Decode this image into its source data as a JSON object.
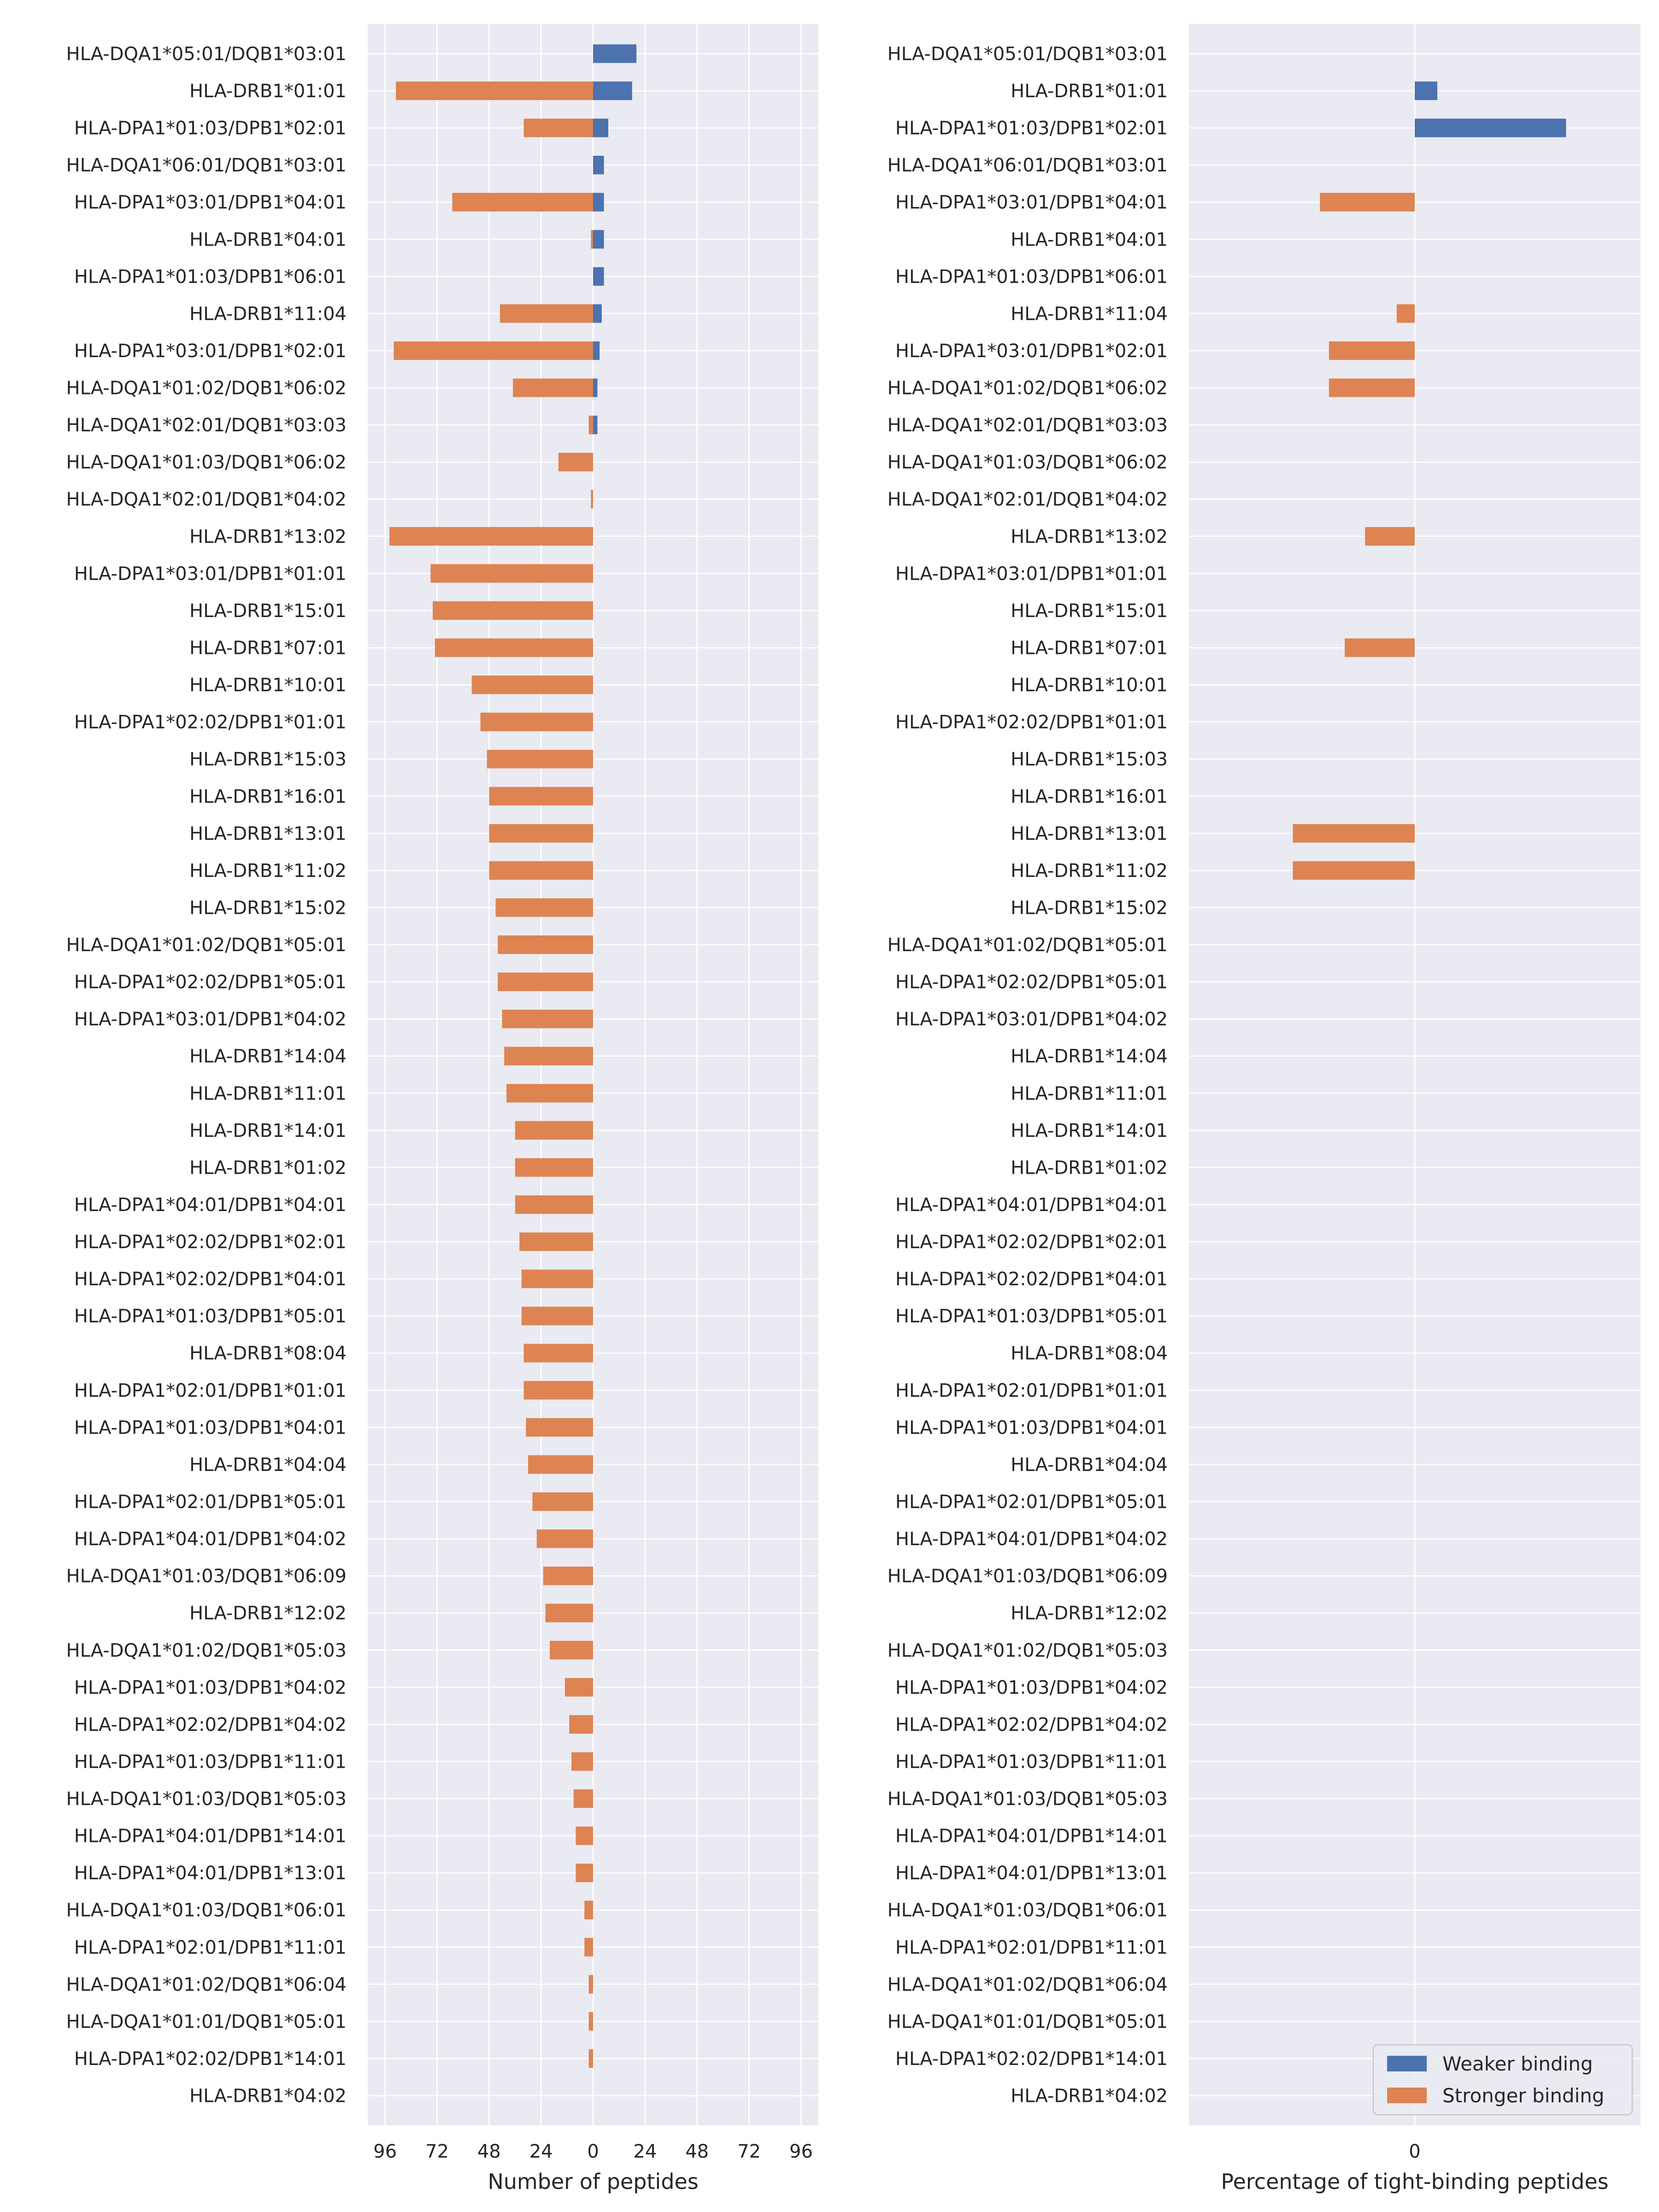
{
  "chart_data": [
    {
      "type": "bar",
      "orientation": "horizontal",
      "layout": "diverging",
      "xlabel": "Number of peptides",
      "ylabel": "",
      "xticks": [
        "96",
        "72",
        "48",
        "24",
        "0",
        "24",
        "48",
        "72",
        "96"
      ],
      "xlim": [
        -104,
        104
      ],
      "grid": true,
      "categories": [
        "HLA-DQA1*05:01/DQB1*03:01",
        "HLA-DRB1*01:01",
        "HLA-DPA1*01:03/DPB1*02:01",
        "HLA-DQA1*06:01/DQB1*03:01",
        "HLA-DPA1*03:01/DPB1*04:01",
        "HLA-DRB1*04:01",
        "HLA-DPA1*01:03/DPB1*06:01",
        "HLA-DRB1*11:04",
        "HLA-DPA1*03:01/DPB1*02:01",
        "HLA-DQA1*01:02/DQB1*06:02",
        "HLA-DQA1*02:01/DQB1*03:03",
        "HLA-DQA1*01:03/DQB1*06:02",
        "HLA-DQA1*02:01/DQB1*04:02",
        "HLA-DRB1*13:02",
        "HLA-DPA1*03:01/DPB1*01:01",
        "HLA-DRB1*15:01",
        "HLA-DRB1*07:01",
        "HLA-DRB1*10:01",
        "HLA-DPA1*02:02/DPB1*01:01",
        "HLA-DRB1*15:03",
        "HLA-DRB1*16:01",
        "HLA-DRB1*13:01",
        "HLA-DRB1*11:02",
        "HLA-DRB1*15:02",
        "HLA-DQA1*01:02/DQB1*05:01",
        "HLA-DPA1*02:02/DPB1*05:01",
        "HLA-DPA1*03:01/DPB1*04:02",
        "HLA-DRB1*14:04",
        "HLA-DRB1*11:01",
        "HLA-DRB1*14:01",
        "HLA-DRB1*01:02",
        "HLA-DPA1*04:01/DPB1*04:01",
        "HLA-DPA1*02:02/DPB1*02:01",
        "HLA-DPA1*02:02/DPB1*04:01",
        "HLA-DPA1*01:03/DPB1*05:01",
        "HLA-DRB1*08:04",
        "HLA-DPA1*02:01/DPB1*01:01",
        "HLA-DPA1*01:03/DPB1*04:01",
        "HLA-DRB1*04:04",
        "HLA-DPA1*02:01/DPB1*05:01",
        "HLA-DPA1*04:01/DPB1*04:02",
        "HLA-DQA1*01:03/DQB1*06:09",
        "HLA-DRB1*12:02",
        "HLA-DQA1*01:02/DQB1*05:03",
        "HLA-DPA1*01:03/DPB1*04:02",
        "HLA-DPA1*02:02/DPB1*04:02",
        "HLA-DPA1*01:03/DPB1*11:01",
        "HLA-DQA1*01:03/DQB1*05:03",
        "HLA-DPA1*04:01/DPB1*14:01",
        "HLA-DPA1*04:01/DPB1*13:01",
        "HLA-DQA1*01:03/DQB1*06:01",
        "HLA-DPA1*02:01/DPB1*11:01",
        "HLA-DQA1*01:02/DQB1*06:04",
        "HLA-DQA1*01:01/DQB1*05:01",
        "HLA-DPA1*02:02/DPB1*14:01",
        "HLA-DRB1*04:02"
      ],
      "series": [
        {
          "name": "Weaker binding",
          "color": "#4c72b0",
          "values": [
            20,
            18,
            7,
            5,
            5,
            5,
            5,
            4,
            3,
            2,
            2,
            0,
            0,
            0,
            0,
            0,
            0,
            0,
            0,
            0,
            0,
            0,
            0,
            0,
            0,
            0,
            0,
            0,
            0,
            0,
            0,
            0,
            0,
            0,
            0,
            0,
            0,
            0,
            0,
            0,
            0,
            0,
            0,
            0,
            0,
            0,
            0,
            0,
            0,
            0,
            0,
            0,
            0,
            0,
            0,
            0
          ]
        },
        {
          "name": "Stronger binding",
          "color": "#dd8452",
          "values": [
            0,
            91,
            32,
            0,
            65,
            1,
            0,
            43,
            92,
            37,
            2,
            16,
            1,
            94,
            75,
            74,
            73,
            56,
            52,
            49,
            48,
            48,
            48,
            45,
            44,
            44,
            42,
            41,
            40,
            36,
            36,
            36,
            34,
            33,
            33,
            32,
            32,
            31,
            30,
            28,
            26,
            23,
            22,
            20,
            13,
            11,
            10,
            9,
            8,
            8,
            4,
            4,
            2,
            2,
            2,
            0
          ]
        }
      ]
    },
    {
      "type": "bar",
      "orientation": "horizontal",
      "layout": "diverging",
      "xlabel": "Percentage of tight-binding peptides",
      "ylabel": "",
      "xticks": [
        "0"
      ],
      "xlim": [
        -100,
        100
      ],
      "grid": true,
      "legend": {
        "position": "lower-right",
        "entries": [
          "Weaker binding",
          "Stronger binding"
        ]
      },
      "categories": [
        "HLA-DQA1*05:01/DQB1*03:01",
        "HLA-DRB1*01:01",
        "HLA-DPA1*01:03/DPB1*02:01",
        "HLA-DQA1*06:01/DQB1*03:01",
        "HLA-DPA1*03:01/DPB1*04:01",
        "HLA-DRB1*04:01",
        "HLA-DPA1*01:03/DPB1*06:01",
        "HLA-DRB1*11:04",
        "HLA-DPA1*03:01/DPB1*02:01",
        "HLA-DQA1*01:02/DQB1*06:02",
        "HLA-DQA1*02:01/DQB1*03:03",
        "HLA-DQA1*01:03/DQB1*06:02",
        "HLA-DQA1*02:01/DQB1*04:02",
        "HLA-DRB1*13:02",
        "HLA-DPA1*03:01/DPB1*01:01",
        "HLA-DRB1*15:01",
        "HLA-DRB1*07:01",
        "HLA-DRB1*10:01",
        "HLA-DPA1*02:02/DPB1*01:01",
        "HLA-DRB1*15:03",
        "HLA-DRB1*16:01",
        "HLA-DRB1*13:01",
        "HLA-DRB1*11:02",
        "HLA-DRB1*15:02",
        "HLA-DQA1*01:02/DQB1*05:01",
        "HLA-DPA1*02:02/DPB1*05:01",
        "HLA-DPA1*03:01/DPB1*04:02",
        "HLA-DRB1*14:04",
        "HLA-DRB1*11:01",
        "HLA-DRB1*14:01",
        "HLA-DRB1*01:02",
        "HLA-DPA1*04:01/DPB1*04:01",
        "HLA-DPA1*02:02/DPB1*02:01",
        "HLA-DPA1*02:02/DPB1*04:01",
        "HLA-DPA1*01:03/DPB1*05:01",
        "HLA-DRB1*08:04",
        "HLA-DPA1*02:01/DPB1*01:01",
        "HLA-DPA1*01:03/DPB1*04:01",
        "HLA-DRB1*04:04",
        "HLA-DPA1*02:01/DPB1*05:01",
        "HLA-DPA1*04:01/DPB1*04:02",
        "HLA-DQA1*01:03/DQB1*06:09",
        "HLA-DRB1*12:02",
        "HLA-DQA1*01:02/DQB1*05:03",
        "HLA-DPA1*01:03/DPB1*04:02",
        "HLA-DPA1*02:02/DPB1*04:02",
        "HLA-DPA1*01:03/DPB1*11:01",
        "HLA-DQA1*01:03/DQB1*05:03",
        "HLA-DPA1*04:01/DPB1*14:01",
        "HLA-DPA1*04:01/DPB1*13:01",
        "HLA-DQA1*01:03/DQB1*06:01",
        "HLA-DPA1*02:01/DPB1*11:01",
        "HLA-DQA1*01:02/DQB1*06:04",
        "HLA-DQA1*01:01/DQB1*05:01",
        "HLA-DPA1*02:02/DPB1*14:01",
        "HLA-DRB1*04:02"
      ],
      "series": [
        {
          "name": "Weaker binding",
          "color": "#4c72b0",
          "values": [
            0,
            10,
            67,
            0,
            0,
            0,
            0,
            0,
            0,
            0,
            0,
            0,
            0,
            0,
            0,
            0,
            0,
            0,
            0,
            0,
            0,
            0,
            0,
            0,
            0,
            0,
            0,
            0,
            0,
            0,
            0,
            0,
            0,
            0,
            0,
            0,
            0,
            0,
            0,
            0,
            0,
            0,
            0,
            0,
            0,
            0,
            0,
            0,
            0,
            0,
            0,
            0,
            0,
            0,
            0,
            0
          ]
        },
        {
          "name": "Stronger binding",
          "color": "#dd8452",
          "values": [
            0,
            0,
            0,
            0,
            42,
            0,
            0,
            8,
            38,
            38,
            0,
            0,
            0,
            22,
            0,
            0,
            31,
            0,
            0,
            0,
            0,
            54,
            54,
            0,
            0,
            0,
            0,
            0,
            0,
            0,
            0,
            0,
            0,
            0,
            0,
            0,
            0,
            0,
            0,
            0,
            0,
            0,
            0,
            0,
            0,
            0,
            0,
            0,
            0,
            0,
            0,
            0,
            0,
            0,
            0,
            0
          ]
        }
      ]
    }
  ]
}
